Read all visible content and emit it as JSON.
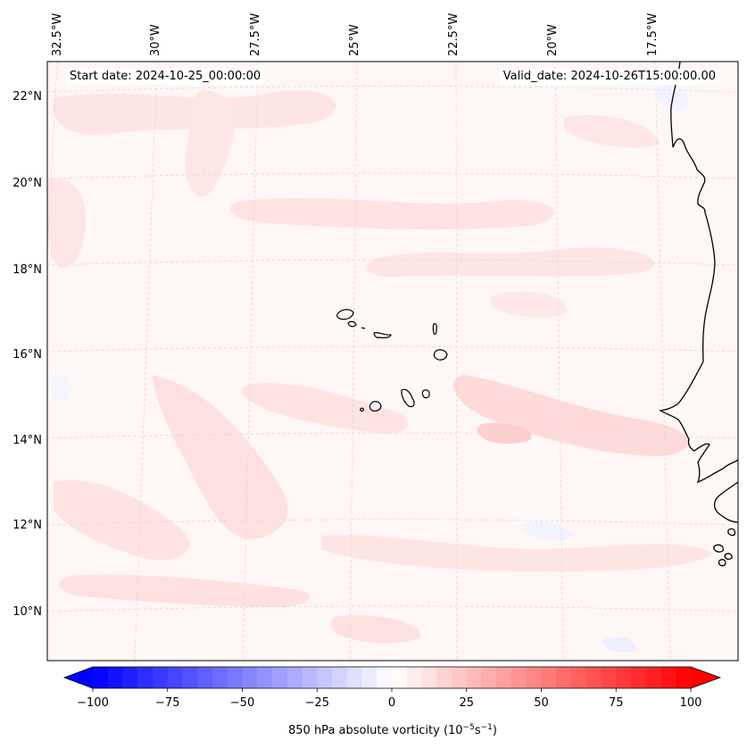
{
  "map": {
    "annotations": {
      "start_date": "Start date: 2024-10-25_00:00:00",
      "valid_date": "Valid_date: 2024-10-26T15:00:00.00"
    },
    "lon_labels": [
      "32.5°W",
      "30°W",
      "27.5°W",
      "25°W",
      "22.5°W",
      "20°W",
      "17.5°W"
    ],
    "lat_labels": [
      "22°N",
      "20°N",
      "18°N",
      "16°N",
      "14°N",
      "12°N",
      "10°N"
    ],
    "features": [
      "Cabo Verde islands",
      "West African coastline"
    ],
    "gridlines": true
  },
  "colorbar": {
    "label_prefix": "850 hPa absolute vorticity (10",
    "label_exp1": "−5",
    "label_mid": "s",
    "label_exp2": "−1",
    "label_suffix": ")",
    "ticks": [
      "−100",
      "−75",
      "−50",
      "−25",
      "0",
      "25",
      "50",
      "75",
      "100"
    ],
    "min": -100,
    "max": 100,
    "levels": 40,
    "cmap": "bwr",
    "colors": {
      "low": "#0000ff",
      "mid": "#ffffff",
      "high": "#ff0000"
    },
    "extend": "both"
  }
}
